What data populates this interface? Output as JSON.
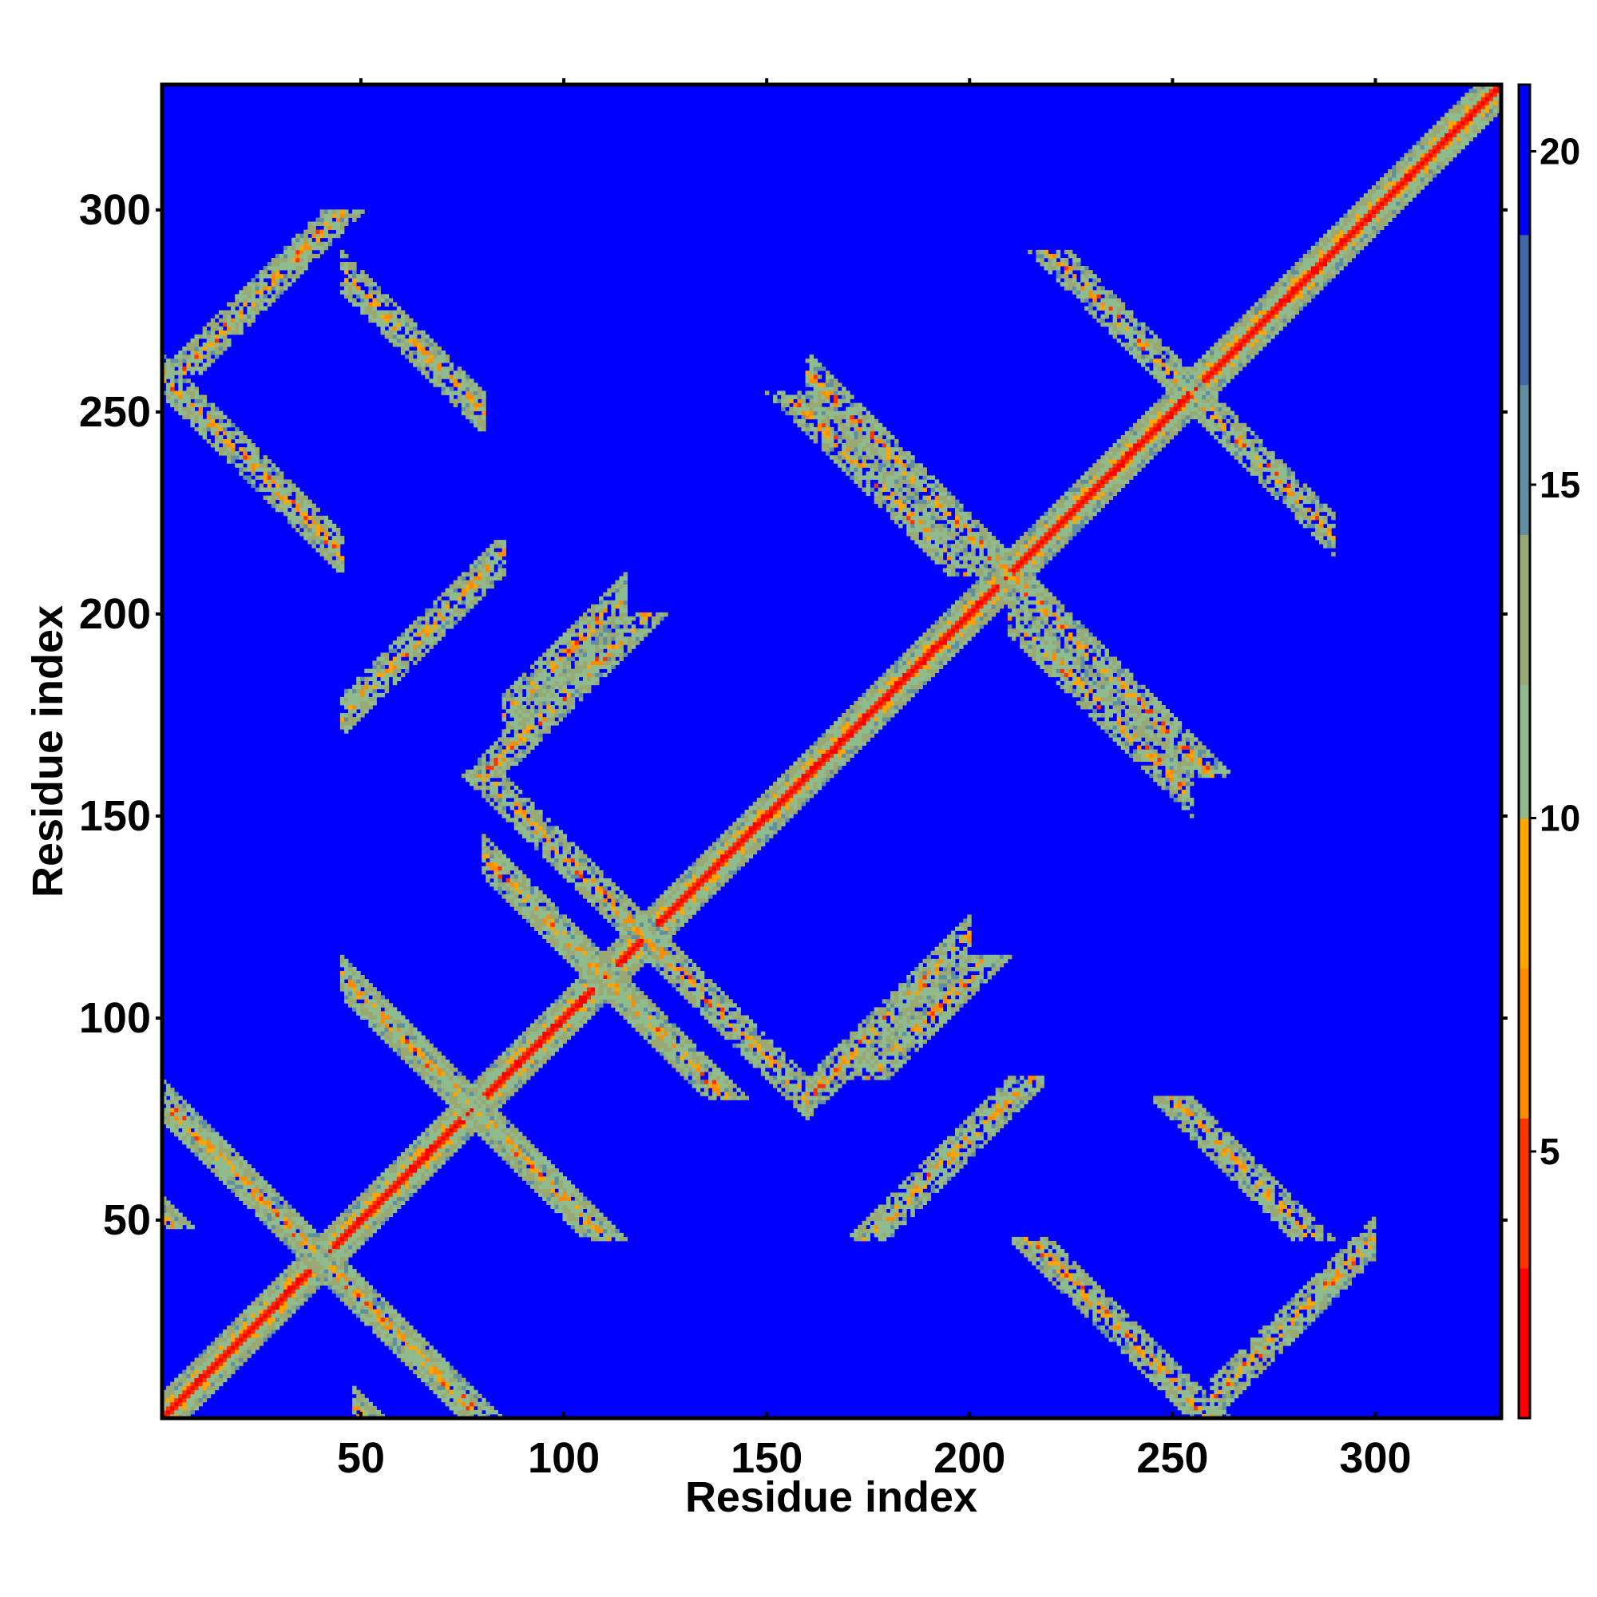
{
  "chart_data": {
    "type": "heatmap",
    "xlabel": "Residue index",
    "ylabel": "Residue index",
    "xlim": [
      1,
      331
    ],
    "ylim": [
      1,
      331
    ],
    "xticks": [
      50,
      100,
      150,
      200,
      250,
      300
    ],
    "yticks": [
      50,
      100,
      150,
      200,
      250,
      300
    ],
    "colorbar": {
      "range": [
        1,
        21
      ],
      "ticks": [
        5,
        10,
        15,
        20
      ],
      "colormap": [
        "#ff0000",
        "#ff3300",
        "#ff8c00",
        "#ffa500",
        "#8fbc8f",
        "#9aa874",
        "#5f8fa0",
        "#4068a8",
        "#0000ff"
      ]
    },
    "background_value": 21,
    "background_color": "#0000ff",
    "grid": false,
    "diagonal": {
      "from": 1,
      "to": 331
    },
    "secondary_structure_contacts": [
      {
        "kind": "antiparallel",
        "x_range": [
          1,
          75
        ],
        "center_y": 80
      },
      {
        "kind": "antiparallel",
        "x_range": [
          48,
          75
        ],
        "center_y": 51
      },
      {
        "kind": "parallel",
        "x_range": [
          45,
          85
        ],
        "center_y": 130
      },
      {
        "kind": "antiparallel",
        "x_range": [
          45,
          100
        ],
        "center_y": 155
      },
      {
        "kind": "antiparallel",
        "x_range": [
          80,
          130
        ],
        "center_y": 220
      },
      {
        "kind": "parallel",
        "x_range": [
          85,
          115
        ],
        "center_y": 90
      },
      {
        "kind": "antiparallel",
        "x_range": [
          120,
          160
        ],
        "center_y": 240
      },
      {
        "kind": "parallel",
        "x_range": [
          160,
          200
        ],
        "center_y": -80
      },
      {
        "kind": "antiparallel",
        "x_range": [
          160,
          210
        ],
        "center_y": 420
      },
      {
        "kind": "antiparallel",
        "x_range": [
          210,
          255
        ],
        "center_y": 410
      },
      {
        "kind": "parallel",
        "x_range": [
          260,
          300
        ],
        "center_y": -255
      },
      {
        "kind": "antiparallel",
        "x_range": [
          255,
          290
        ],
        "center_y": 510
      },
      {
        "kind": "antiparallel",
        "x_range": [
          1,
          45
        ],
        "center_y": 260
      },
      {
        "kind": "antiparallel",
        "x_range": [
          45,
          80
        ],
        "center_y": 330
      }
    ]
  }
}
